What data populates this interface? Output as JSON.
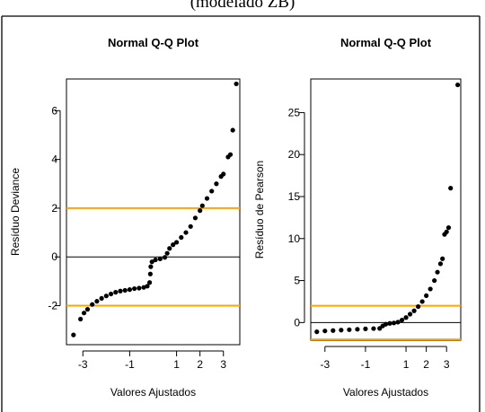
{
  "page_title": "(modelado ZB)",
  "colors": {
    "reference_line": "#FFA500",
    "zero_line": "#000000",
    "points": "#000000"
  },
  "chart_data": [
    {
      "type": "scatter",
      "title": "Normal Q-Q Plot",
      "xlabel": "Valores Ajustados",
      "ylabel": "Resíduo Deviance",
      "xlim": [
        -3.7,
        3.7
      ],
      "ylim": [
        -3.6,
        7.3
      ],
      "xticks": [
        -3,
        -1,
        1,
        2,
        3
      ],
      "yticks": [
        -2,
        0,
        2,
        4,
        6
      ],
      "hlines": [
        {
          "y": 2,
          "color": "#FFA500"
        },
        {
          "y": 0,
          "color": "#000000"
        },
        {
          "y": -2,
          "color": "#FFA500"
        }
      ],
      "points": [
        [
          -3.4,
          -3.2
        ],
        [
          -3.1,
          -2.55
        ],
        [
          -2.95,
          -2.3
        ],
        [
          -2.8,
          -2.15
        ],
        [
          -2.6,
          -1.95
        ],
        [
          -2.4,
          -1.82
        ],
        [
          -2.2,
          -1.7
        ],
        [
          -2.0,
          -1.6
        ],
        [
          -1.8,
          -1.52
        ],
        [
          -1.6,
          -1.45
        ],
        [
          -1.4,
          -1.4
        ],
        [
          -1.2,
          -1.37
        ],
        [
          -1.0,
          -1.34
        ],
        [
          -0.8,
          -1.3
        ],
        [
          -0.6,
          -1.28
        ],
        [
          -0.4,
          -1.25
        ],
        [
          -0.25,
          -1.2
        ],
        [
          -0.15,
          -1.05
        ],
        [
          -0.12,
          -0.7
        ],
        [
          -0.1,
          -0.4
        ],
        [
          -0.05,
          -0.2
        ],
        [
          0.1,
          -0.12
        ],
        [
          0.3,
          -0.08
        ],
        [
          0.5,
          -0.02
        ],
        [
          0.6,
          0.15
        ],
        [
          0.7,
          0.35
        ],
        [
          0.85,
          0.5
        ],
        [
          1.0,
          0.6
        ],
        [
          1.2,
          0.8
        ],
        [
          1.4,
          1.0
        ],
        [
          1.6,
          1.25
        ],
        [
          1.8,
          1.6
        ],
        [
          2.0,
          1.9
        ],
        [
          2.1,
          2.1
        ],
        [
          2.3,
          2.4
        ],
        [
          2.5,
          2.7
        ],
        [
          2.7,
          3.0
        ],
        [
          2.9,
          3.3
        ],
        [
          3.0,
          3.4
        ],
        [
          3.2,
          4.1
        ],
        [
          3.3,
          4.2
        ],
        [
          3.4,
          5.2
        ],
        [
          3.55,
          7.1
        ]
      ]
    },
    {
      "type": "scatter",
      "title": "Normal Q-Q Plot",
      "xlabel": "Valores Ajustados",
      "ylabel": "Resíduo de Pearson",
      "xlim": [
        -3.7,
        3.7
      ],
      "ylim": [
        -2.1,
        29.0
      ],
      "xticks": [
        -3,
        -1,
        1,
        2,
        3
      ],
      "yticks": [
        0,
        5,
        10,
        15,
        20,
        25
      ],
      "hlines": [
        {
          "y": 2,
          "color": "#FFA500"
        },
        {
          "y": 0,
          "color": "#000000"
        },
        {
          "y": -2,
          "color": "#FFA500"
        }
      ],
      "points": [
        [
          -3.4,
          -1.1
        ],
        [
          -3.0,
          -1.0
        ],
        [
          -2.6,
          -0.95
        ],
        [
          -2.2,
          -0.9
        ],
        [
          -1.8,
          -0.85
        ],
        [
          -1.4,
          -0.8
        ],
        [
          -1.0,
          -0.75
        ],
        [
          -0.6,
          -0.72
        ],
        [
          -0.3,
          -0.7
        ],
        [
          -0.15,
          -0.4
        ],
        [
          0.0,
          -0.2
        ],
        [
          0.2,
          -0.1
        ],
        [
          0.4,
          -0.05
        ],
        [
          0.6,
          0.05
        ],
        [
          0.8,
          0.3
        ],
        [
          1.0,
          0.6
        ],
        [
          1.2,
          1.0
        ],
        [
          1.4,
          1.4
        ],
        [
          1.6,
          1.9
        ],
        [
          1.8,
          2.5
        ],
        [
          2.0,
          3.2
        ],
        [
          2.2,
          4.0
        ],
        [
          2.4,
          5.0
        ],
        [
          2.55,
          6.0
        ],
        [
          2.7,
          7.0
        ],
        [
          2.8,
          7.6
        ],
        [
          2.9,
          10.5
        ],
        [
          3.0,
          10.8
        ],
        [
          3.1,
          11.3
        ],
        [
          3.2,
          16.0
        ],
        [
          3.55,
          28.3
        ]
      ]
    }
  ]
}
